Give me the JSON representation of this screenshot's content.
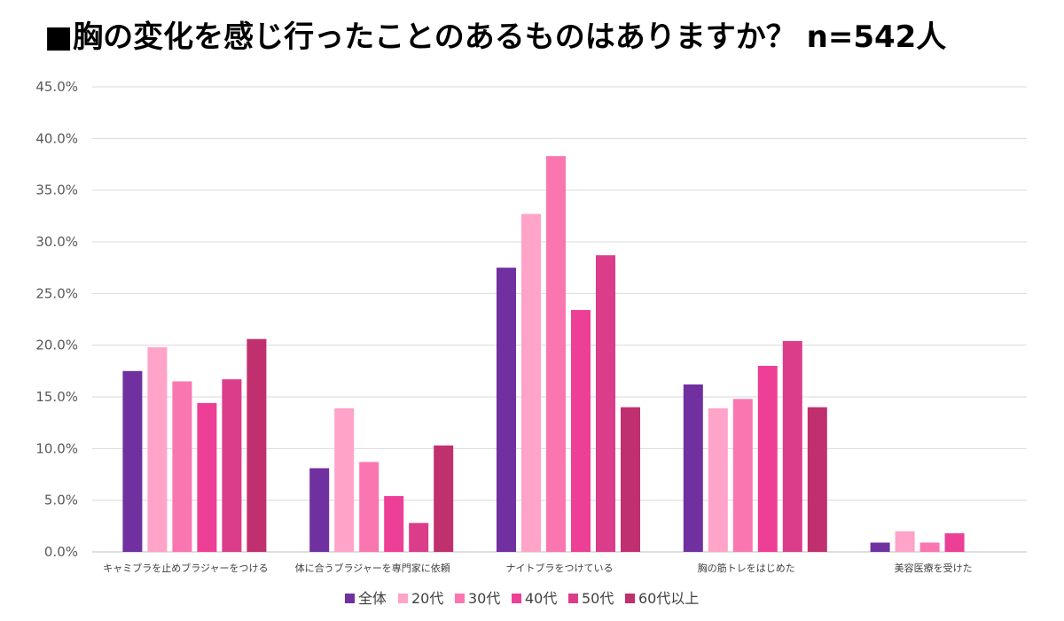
{
  "title": "■胸の変化を感じ行ったことのあるものはありますか？ n=542人",
  "chart_data": {
    "type": "bar",
    "title": "■胸の変化を感じ行ったことのあるものはありますか？ n=542人",
    "categories": [
      "キャミブラを止めブラジャーをつける",
      "体に合うブラジャーを専門家に依頼",
      "ナイトブラをつけている",
      "胸の筋トレをはじめた",
      "美容医療を受けた"
    ],
    "ylim": [
      0,
      45
    ],
    "yticks": [
      "0.0%",
      "5.0%",
      "10.0%",
      "15.0%",
      "20.0%",
      "25.0%",
      "30.0%",
      "35.0%",
      "40.0%",
      "45.0%"
    ],
    "ytick_values": [
      0,
      5,
      10,
      15,
      20,
      25,
      30,
      35,
      40,
      45
    ],
    "grid": true,
    "legend_position": "bottom",
    "series": [
      {
        "name": "全体",
        "color": "#7030A0",
        "values": [
          17.5,
          8.1,
          27.5,
          16.2,
          0.9
        ]
      },
      {
        "name": "20代",
        "color": "#FFA3C8",
        "values": [
          19.8,
          13.9,
          32.7,
          13.9,
          2.0
        ]
      },
      {
        "name": "30代",
        "color": "#FA76B0",
        "values": [
          16.5,
          8.7,
          38.3,
          14.8,
          0.9
        ]
      },
      {
        "name": "40代",
        "color": "#EE3F96",
        "values": [
          14.4,
          5.4,
          23.4,
          18.0,
          1.8
        ]
      },
      {
        "name": "50代",
        "color": "#DB3D8A",
        "values": [
          16.7,
          2.8,
          28.7,
          20.4,
          0
        ]
      },
      {
        "name": "60代以上",
        "color": "#C0306F",
        "values": [
          20.6,
          10.3,
          14.0,
          14.0,
          0
        ]
      }
    ]
  }
}
